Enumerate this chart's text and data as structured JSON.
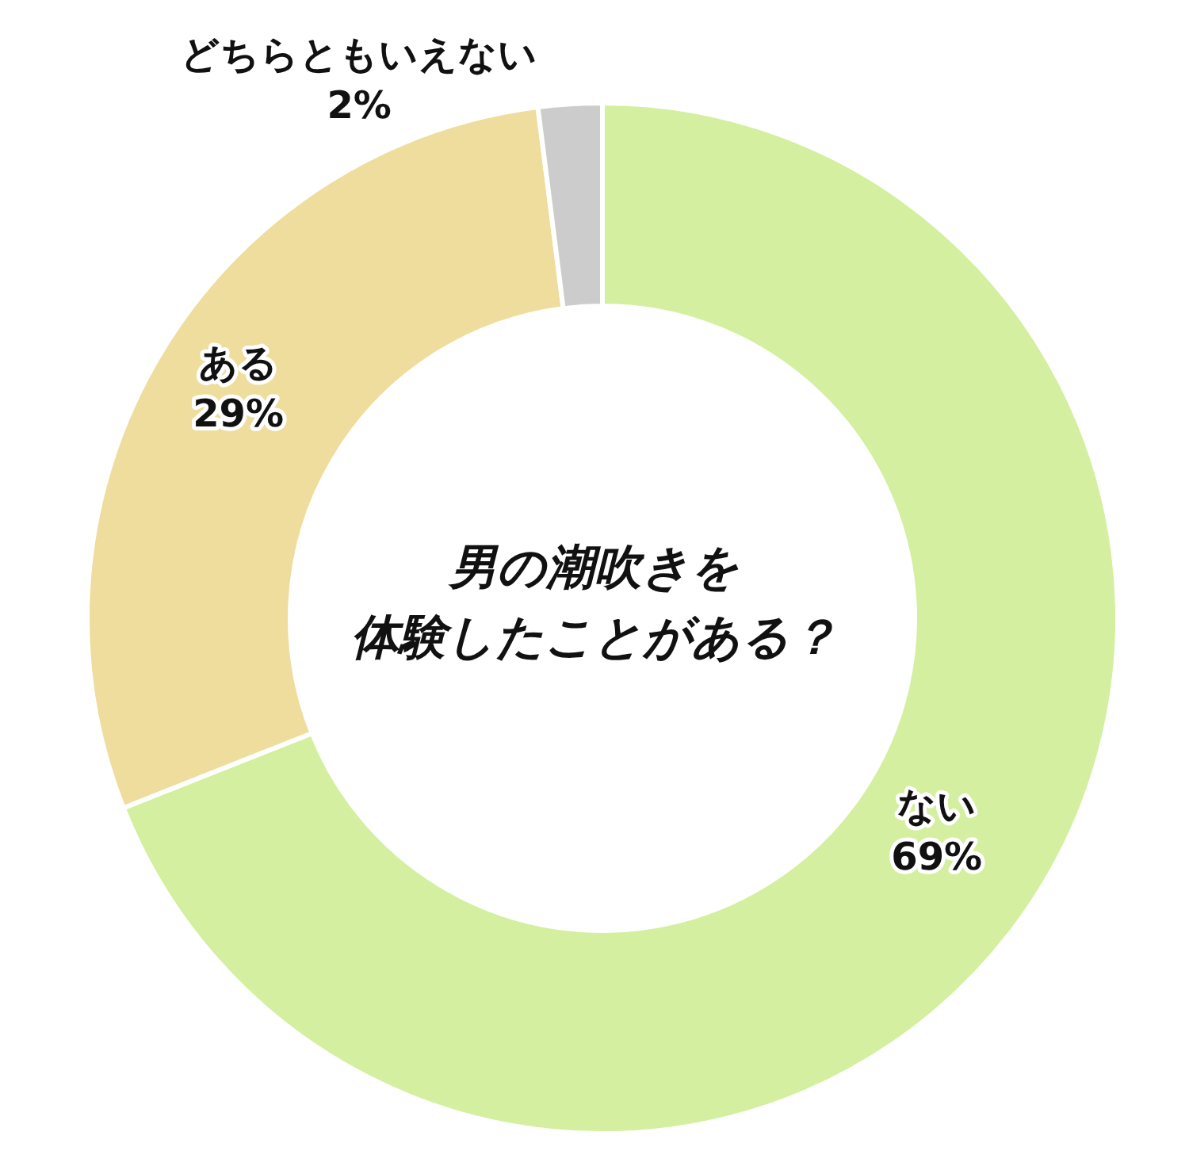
{
  "chart_data": {
    "type": "donut",
    "title": "男の潮吹きを体験したことがある？",
    "categories": [
      "ない",
      "ある",
      "どちらともいえない"
    ],
    "values": [
      69,
      29,
      2
    ],
    "value_labels": [
      "69%",
      "29%",
      "2%"
    ],
    "colors": [
      "#d3ef9f",
      "#eedd9c",
      "#cccccc"
    ]
  }
}
